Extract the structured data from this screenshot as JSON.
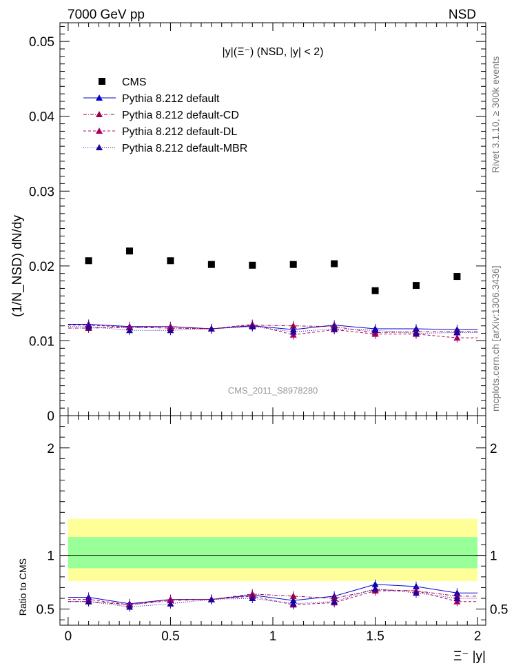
{
  "header": {
    "left": "7000 GeV pp",
    "right": "NSD"
  },
  "side_labels": {
    "rivet": "Rivet 3.1.10, ≥ 300k events",
    "mcplots": "mcplots.cern.ch [arXiv:1306.3436]"
  },
  "watermark": "CMS_2011_S8978280",
  "colors": {
    "cms": "#000000",
    "default": "#0000cc",
    "cd": "#990044",
    "dl": "#aa0066",
    "mbr": "#220099",
    "band_outer": "#ffff99",
    "band_inner": "#99ff99"
  },
  "chart_data": [
    {
      "type": "scatter",
      "panel": "main",
      "title": "|y|(Ξ⁻) (NSD, |y| < 2)",
      "ylabel": "(1/N_NSD) dN/dy",
      "xlim": [
        -0.04,
        2.04
      ],
      "ylim": [
        0,
        0.0525
      ],
      "yticks": [
        0,
        0.01,
        0.02,
        0.03,
        0.04,
        0.05
      ],
      "ytick_labels": [
        "0",
        "0.01",
        "0.02",
        "0.03",
        "0.04",
        "0.05"
      ],
      "x": [
        0.1,
        0.3,
        0.5,
        0.7,
        0.9,
        1.1,
        1.3,
        1.5,
        1.7,
        1.9
      ],
      "legend": [
        "CMS",
        "Pythia 8.212 default",
        "Pythia 8.212 default-CD",
        "Pythia 8.212 default-DL",
        "Pythia 8.212 default-MBR"
      ],
      "series": [
        {
          "name": "CMS",
          "style": "square",
          "values": [
            0.0207,
            0.022,
            0.0207,
            0.0202,
            0.0201,
            0.0202,
            0.0203,
            0.0167,
            0.0174,
            0.0186
          ]
        },
        {
          "name": "Pythia 8.212 default",
          "style": "solid",
          "values": [
            0.0122,
            0.0119,
            0.0119,
            0.0116,
            0.012,
            0.0115,
            0.0121,
            0.0116,
            0.0116,
            0.0115
          ]
        },
        {
          "name": "Pythia 8.212 default-CD",
          "style": "dashdot",
          "values": [
            0.0117,
            0.0118,
            0.0117,
            0.0116,
            0.0121,
            0.012,
            0.0119,
            0.0111,
            0.0112,
            0.0112
          ]
        },
        {
          "name": "Pythia 8.212 default-DL",
          "style": "dashed",
          "values": [
            0.0121,
            0.0118,
            0.0119,
            0.0116,
            0.0122,
            0.0108,
            0.0115,
            0.0109,
            0.0109,
            0.0104
          ]
        },
        {
          "name": "Pythia 8.212 default-MBR",
          "style": "dotted",
          "values": [
            0.0119,
            0.0114,
            0.0114,
            0.0116,
            0.0119,
            0.0112,
            0.0116,
            0.0114,
            0.011,
            0.0111
          ]
        }
      ]
    },
    {
      "type": "line",
      "panel": "ratio",
      "xlabel": "Ξ⁻ |y|",
      "ylabel": "Ratio to CMS",
      "xlim": [
        -0.04,
        2.04
      ],
      "ylim": [
        0.35,
        2.3
      ],
      "yticks": [
        0.5,
        1,
        2
      ],
      "ytick_labels": [
        "0.5",
        "1",
        "2"
      ],
      "xticks": [
        0,
        0.5,
        1,
        1.5,
        2
      ],
      "xtick_labels": [
        "0",
        "0.5",
        "1",
        "1.5",
        "2"
      ],
      "band_outer": [
        0.76,
        1.34
      ],
      "band_inner": [
        0.88,
        1.17
      ],
      "x": [
        0.1,
        0.3,
        0.5,
        0.7,
        0.9,
        1.1,
        1.3,
        1.5,
        1.7,
        1.9
      ],
      "series": [
        {
          "name": "Pythia 8.212 default",
          "style": "solid",
          "values": [
            0.61,
            0.55,
            0.59,
            0.59,
            0.63,
            0.58,
            0.62,
            0.73,
            0.71,
            0.65
          ]
        },
        {
          "name": "Pythia 8.212 default-CD",
          "style": "dashdot",
          "values": [
            0.57,
            0.54,
            0.58,
            0.59,
            0.64,
            0.62,
            0.6,
            0.68,
            0.67,
            0.62
          ]
        },
        {
          "name": "Pythia 8.212 default-DL",
          "style": "dashed",
          "values": [
            0.59,
            0.54,
            0.59,
            0.59,
            0.62,
            0.54,
            0.56,
            0.67,
            0.67,
            0.57
          ]
        },
        {
          "name": "Pythia 8.212 default-MBR",
          "style": "dotted",
          "values": [
            0.57,
            0.52,
            0.55,
            0.59,
            0.6,
            0.55,
            0.57,
            0.69,
            0.65,
            0.6
          ]
        }
      ]
    }
  ]
}
